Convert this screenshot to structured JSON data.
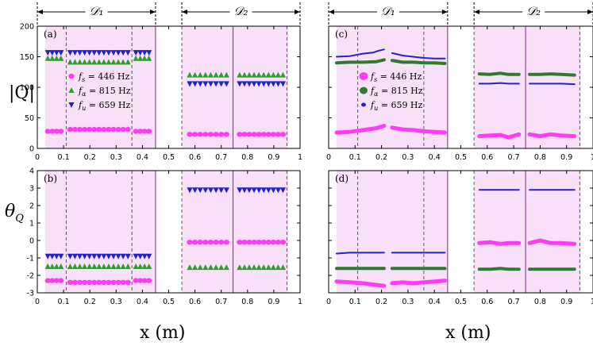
{
  "chart_data": [
    {
      "id": "a",
      "panel_label": "(a)",
      "type": "scatter",
      "kind": "markers",
      "ylabel": "|Q|",
      "xlabel": "",
      "ylim": [
        0,
        200
      ],
      "yticks": [
        "0",
        "50",
        "100",
        "150",
        "200"
      ],
      "xticks": [
        "0",
        "0.1",
        "0.2",
        "0.3",
        "0.4",
        "0.5",
        "0.6",
        "0.7",
        "0.8",
        "0.9",
        "1"
      ],
      "domain_labels": [
        "𝒟₁",
        "𝒟₂"
      ],
      "legend": [
        {
          "name": "f_s = 446 Hz",
          "sub": "s",
          "value": "= 446 Hz",
          "color": "#ff3bf5",
          "marker": "circle"
        },
        {
          "name": "f_α = 815 Hz",
          "sub": "α",
          "value": "= 815 Hz",
          "color": "#2e9e2e",
          "marker": "triangle-up"
        },
        {
          "name": "f_u = 659 Hz",
          "sub": "u",
          "value": "= 659 Hz",
          "color": "#2222cc",
          "marker": "triangle-down"
        }
      ],
      "series": [
        {
          "name": "f_s = 446 Hz",
          "color": "#ff3bf5",
          "marker": "circle",
          "segments": [
            {
              "x0": 0.04,
              "x1": 0.09,
              "y": 28
            },
            {
              "x0": 0.125,
              "x1": 0.345,
              "y": 31
            },
            {
              "x0": 0.375,
              "x1": 0.425,
              "y": 28
            },
            {
              "x0": 0.58,
              "x1": 0.72,
              "y": 23
            },
            {
              "x0": 0.77,
              "x1": 0.935,
              "y": 23
            }
          ]
        },
        {
          "name": "f_α = 815 Hz",
          "color": "#2e9e2e",
          "marker": "triangle-up",
          "segments": [
            {
              "x0": 0.04,
              "x1": 0.09,
              "y": 147
            },
            {
              "x0": 0.125,
              "x1": 0.345,
              "y": 141
            },
            {
              "x0": 0.375,
              "x1": 0.425,
              "y": 147
            },
            {
              "x0": 0.58,
              "x1": 0.72,
              "y": 120
            },
            {
              "x0": 0.77,
              "x1": 0.935,
              "y": 120
            }
          ]
        },
        {
          "name": "f_u = 659 Hz",
          "color": "#2222cc",
          "marker": "triangle-down",
          "segments": [
            {
              "x0": 0.04,
              "x1": 0.09,
              "y": 157
            },
            {
              "x0": 0.125,
              "x1": 0.345,
              "y": 157
            },
            {
              "x0": 0.375,
              "x1": 0.425,
              "y": 157
            },
            {
              "x0": 0.58,
              "x1": 0.72,
              "y": 106
            },
            {
              "x0": 0.77,
              "x1": 0.935,
              "y": 106
            }
          ]
        }
      ]
    },
    {
      "id": "b",
      "panel_label": "(b)",
      "type": "scatter",
      "kind": "markers",
      "ylabel": "θ_Q",
      "xlabel": "x (m)",
      "ylim": [
        -3,
        4
      ],
      "yticks": [
        "-3",
        "-2",
        "-1",
        "0",
        "1",
        "2",
        "3",
        "4"
      ],
      "xticks": [
        "0",
        "0.1",
        "0.2",
        "0.3",
        "0.4",
        "0.5",
        "0.6",
        "0.7",
        "0.8",
        "0.9",
        "1"
      ],
      "series": [
        {
          "name": "f_s = 446 Hz",
          "color": "#ff3bf5",
          "marker": "circle",
          "segments": [
            {
              "x0": 0.04,
              "x1": 0.09,
              "y": -2.3
            },
            {
              "x0": 0.125,
              "x1": 0.345,
              "y": -2.4
            },
            {
              "x0": 0.375,
              "x1": 0.425,
              "y": -2.3
            },
            {
              "x0": 0.58,
              "x1": 0.72,
              "y": -0.1
            },
            {
              "x0": 0.77,
              "x1": 0.935,
              "y": -0.1
            }
          ]
        },
        {
          "name": "f_α = 815 Hz",
          "color": "#2e9e2e",
          "marker": "triangle-up",
          "segments": [
            {
              "x0": 0.04,
              "x1": 0.09,
              "y": -1.5
            },
            {
              "x0": 0.125,
              "x1": 0.345,
              "y": -1.5
            },
            {
              "x0": 0.375,
              "x1": 0.425,
              "y": -1.5
            },
            {
              "x0": 0.58,
              "x1": 0.72,
              "y": -1.55
            },
            {
              "x0": 0.77,
              "x1": 0.935,
              "y": -1.55
            }
          ]
        },
        {
          "name": "f_u = 659 Hz",
          "color": "#2222cc",
          "marker": "triangle-down",
          "segments": [
            {
              "x0": 0.04,
              "x1": 0.09,
              "y": -0.9
            },
            {
              "x0": 0.125,
              "x1": 0.345,
              "y": -0.9
            },
            {
              "x0": 0.375,
              "x1": 0.425,
              "y": -0.9
            },
            {
              "x0": 0.58,
              "x1": 0.72,
              "y": 2.9
            },
            {
              "x0": 0.77,
              "x1": 0.935,
              "y": 2.9
            }
          ]
        }
      ]
    },
    {
      "id": "c",
      "panel_label": "(c)",
      "type": "line",
      "kind": "lines",
      "ylabel": "",
      "xlabel": "",
      "ylim": [
        0,
        200
      ],
      "xticks": [
        "0",
        "0.1",
        "0.2",
        "0.3",
        "0.4",
        "0.5",
        "0.6",
        "0.7",
        "0.8",
        "0.9",
        "1"
      ],
      "domain_labels": [
        "𝒟₁",
        "𝒟₂"
      ],
      "legend": [
        {
          "name": "f_s = 446 Hz",
          "sub": "s",
          "value": "= 446 Hz",
          "color": "#ff3bf5",
          "marker": "circle"
        },
        {
          "name": "f_α = 815 Hz",
          "sub": "α",
          "value": "= 815 Hz",
          "color": "#2e7a2e",
          "marker": "circle"
        },
        {
          "name": "f_u = 659 Hz",
          "sub": "u",
          "value": "= 659 Hz",
          "color": "#2222cc",
          "marker": "circle"
        }
      ],
      "series": [
        {
          "name": "f_s = 446 Hz",
          "color": "#ff3bf5",
          "width": 5,
          "segments": [
            {
              "x": [
                0.03,
                0.08,
                0.13,
                0.18,
                0.21
              ],
              "y": [
                26,
                27,
                30,
                33,
                37
              ]
            },
            {
              "x": [
                0.24,
                0.28,
                0.32,
                0.36,
                0.4,
                0.44
              ],
              "y": [
                34,
                31,
                30,
                28,
                27,
                26
              ]
            },
            {
              "x": [
                0.57,
                0.61,
                0.65,
                0.68,
                0.72
              ],
              "y": [
                20,
                21,
                22,
                18,
                23
              ]
            },
            {
              "x": [
                0.76,
                0.8,
                0.84,
                0.88,
                0.93
              ],
              "y": [
                23,
                20,
                23,
                21,
                20
              ]
            }
          ]
        },
        {
          "name": "f_α = 815 Hz",
          "color": "#2e7a2e",
          "width": 4,
          "segments": [
            {
              "x": [
                0.03,
                0.08,
                0.13,
                0.18,
                0.21
              ],
              "y": [
                140,
                141,
                141,
                142,
                145
              ]
            },
            {
              "x": [
                0.24,
                0.28,
                0.32,
                0.36,
                0.4,
                0.44
              ],
              "y": [
                144,
                141,
                141,
                140,
                140,
                139
              ]
            },
            {
              "x": [
                0.57,
                0.61,
                0.65,
                0.68,
                0.72
              ],
              "y": [
                122,
                121,
                123,
                121,
                121
              ]
            },
            {
              "x": [
                0.76,
                0.8,
                0.84,
                0.88,
                0.93
              ],
              "y": [
                121,
                121,
                122,
                121,
                120
              ]
            }
          ]
        },
        {
          "name": "f_u = 659 Hz",
          "color": "#2222cc",
          "width": 2,
          "segments": [
            {
              "x": [
                0.03,
                0.08,
                0.13,
                0.17,
                0.19,
                0.21
              ],
              "y": [
                150,
                151,
                155,
                157,
                160,
                162
              ]
            },
            {
              "x": [
                0.24,
                0.28,
                0.32,
                0.36,
                0.4,
                0.44
              ],
              "y": [
                156,
                152,
                150,
                148,
                147,
                147
              ]
            },
            {
              "x": [
                0.57,
                0.61,
                0.65,
                0.68,
                0.72
              ],
              "y": [
                106,
                106,
                107,
                106,
                106
              ]
            },
            {
              "x": [
                0.76,
                0.8,
                0.84,
                0.88,
                0.93
              ],
              "y": [
                106,
                106,
                106,
                106,
                105
              ]
            }
          ]
        }
      ]
    },
    {
      "id": "d",
      "panel_label": "(d)",
      "type": "line",
      "kind": "lines",
      "ylabel": "",
      "xlabel": "x (m)",
      "ylim": [
        -3,
        4
      ],
      "xticks": [
        "0",
        "0.1",
        "0.2",
        "0.3",
        "0.4",
        "0.5",
        "0.6",
        "0.7",
        "0.8",
        "0.9",
        "1"
      ],
      "series": [
        {
          "name": "f_s = 446 Hz",
          "color": "#ff3bf5",
          "width": 5,
          "segments": [
            {
              "x": [
                0.03,
                0.08,
                0.13,
                0.18,
                0.21
              ],
              "y": [
                -2.35,
                -2.4,
                -2.45,
                -2.55,
                -2.6
              ]
            },
            {
              "x": [
                0.24,
                0.28,
                0.32,
                0.36,
                0.4,
                0.44
              ],
              "y": [
                -2.45,
                -2.4,
                -2.45,
                -2.4,
                -2.35,
                -2.3
              ]
            },
            {
              "x": [
                0.57,
                0.61,
                0.65,
                0.68,
                0.72
              ],
              "y": [
                -0.15,
                -0.1,
                -0.2,
                -0.15,
                -0.15
              ]
            },
            {
              "x": [
                0.76,
                0.8,
                0.84,
                0.88,
                0.93
              ],
              "y": [
                -0.15,
                0.0,
                -0.15,
                -0.15,
                -0.2
              ]
            }
          ]
        },
        {
          "name": "f_α = 815 Hz",
          "color": "#2e7a2e",
          "width": 4,
          "segments": [
            {
              "x": [
                0.03,
                0.08,
                0.13,
                0.18,
                0.21
              ],
              "y": [
                -1.6,
                -1.6,
                -1.6,
                -1.6,
                -1.6
              ]
            },
            {
              "x": [
                0.24,
                0.28,
                0.32,
                0.36,
                0.4,
                0.44
              ],
              "y": [
                -1.6,
                -1.6,
                -1.6,
                -1.6,
                -1.6,
                -1.6
              ]
            },
            {
              "x": [
                0.57,
                0.61,
                0.65,
                0.68,
                0.72
              ],
              "y": [
                -1.65,
                -1.65,
                -1.6,
                -1.65,
                -1.65
              ]
            },
            {
              "x": [
                0.76,
                0.8,
                0.84,
                0.88,
                0.93
              ],
              "y": [
                -1.65,
                -1.65,
                -1.65,
                -1.65,
                -1.65
              ]
            }
          ]
        },
        {
          "name": "f_u = 659 Hz",
          "color": "#2222cc",
          "width": 2,
          "segments": [
            {
              "x": [
                0.03,
                0.08,
                0.13,
                0.18,
                0.21
              ],
              "y": [
                -0.75,
                -0.7,
                -0.7,
                -0.7,
                -0.7
              ]
            },
            {
              "x": [
                0.24,
                0.28,
                0.32,
                0.36,
                0.4,
                0.44
              ],
              "y": [
                -0.7,
                -0.7,
                -0.7,
                -0.7,
                -0.7,
                -0.7
              ]
            },
            {
              "x": [
                0.57,
                0.61,
                0.65,
                0.68,
                0.72
              ],
              "y": [
                2.9,
                2.9,
                2.9,
                2.9,
                2.9
              ]
            },
            {
              "x": [
                0.76,
                0.8,
                0.84,
                0.88,
                0.93
              ],
              "y": [
                2.9,
                2.9,
                2.9,
                2.9,
                2.9
              ]
            }
          ]
        }
      ]
    }
  ],
  "domains": {
    "d1_label": "𝒟₁",
    "d2_label": "𝒟₂",
    "d1_range": [
      0.0,
      0.45
    ],
    "d2_range": [
      0.55,
      1.0
    ]
  },
  "regions": {
    "pink_shaded_x": [
      [
        0.03,
        0.45
      ],
      [
        0.55,
        0.955
      ]
    ],
    "dashed_lines_x": [
      0.11,
      0.36,
      0.55,
      0.95
    ],
    "solid_lines_x": [
      0.45,
      0.745
    ],
    "colors": {
      "shade": "#f8e1f8",
      "accent": "#7b2a7b"
    }
  },
  "axis_labels": {
    "ylabel_top": "|Q|",
    "ylabel_bottom_main": "θ",
    "ylabel_bottom_sub": "Q",
    "xlabel_left": "x (m)",
    "xlabel_right": "x (m)"
  }
}
